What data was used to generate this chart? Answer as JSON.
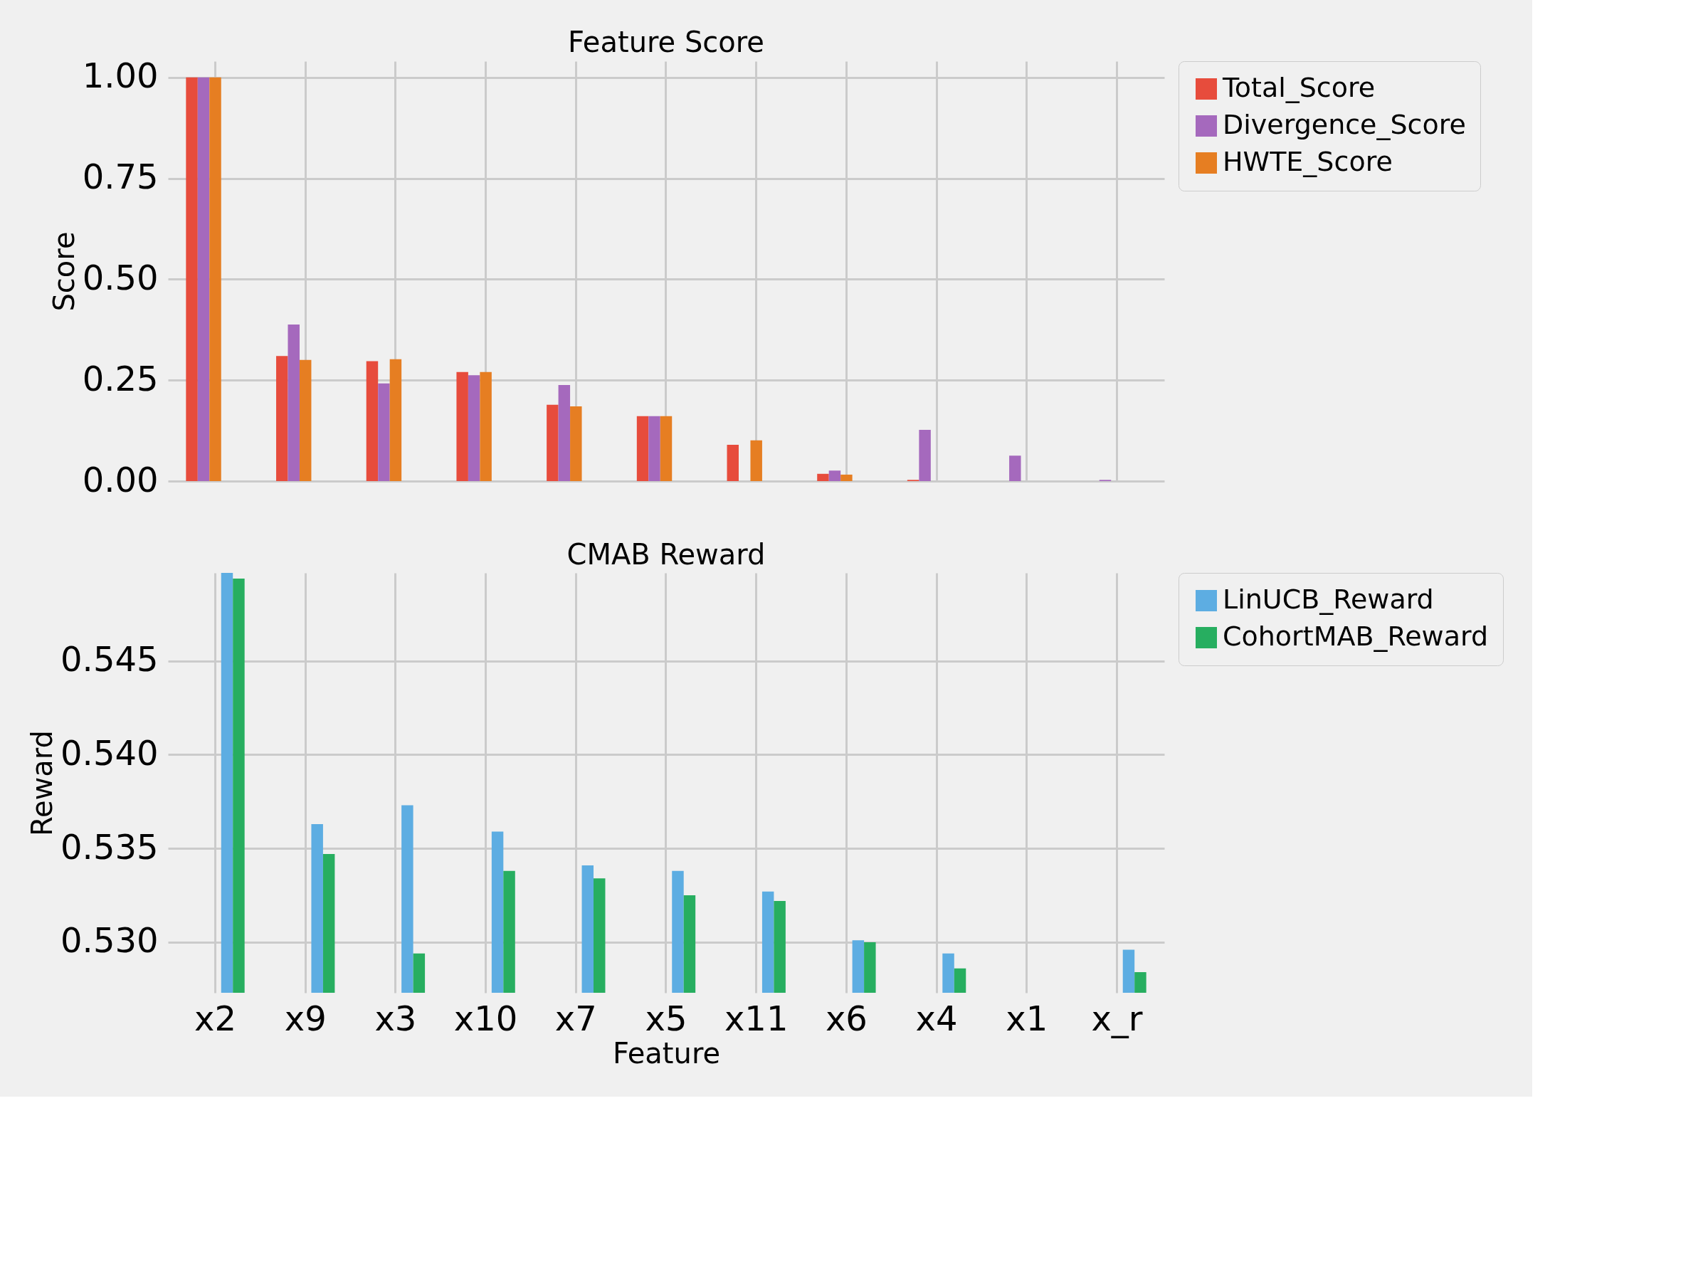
{
  "chart_data": [
    {
      "type": "bar",
      "title": "Feature Score",
      "ylabel": "Score",
      "categories": [
        null,
        null,
        null,
        null,
        null,
        null,
        null,
        null,
        null,
        null,
        null
      ],
      "series": [
        {
          "name": "Total_Score",
          "color": "#e74c3c",
          "values": [
            1.0,
            0.31,
            0.297,
            0.27,
            0.189,
            0.161,
            0.09,
            0.018,
            0.003,
            0,
            0
          ]
        },
        {
          "name": "Divergence_Score",
          "color": "#a569bd",
          "values": [
            1.0,
            0.388,
            0.242,
            0.262,
            0.238,
            0.161,
            0,
            0.026,
            0.127,
            0.063,
            0.003
          ]
        },
        {
          "name": "HWTE_Score",
          "color": "#e67e22",
          "values": [
            1.0,
            0.3,
            0.302,
            0.27,
            0.185,
            0.161,
            0.101,
            0.016,
            0,
            0,
            0
          ]
        }
      ],
      "ylim": [
        0,
        1.04
      ],
      "yticks": [
        {
          "value": 0,
          "label": "0.00"
        },
        {
          "value": 0.25,
          "label": "0.25"
        },
        {
          "value": 0.5,
          "label": "0.50"
        },
        {
          "value": 0.75,
          "label": "0.75"
        },
        {
          "value": 1.0,
          "label": "1.00"
        }
      ],
      "grid": true,
      "legend": "top right",
      "tick_labels": "y"
    },
    {
      "type": "bar",
      "title": "CMAB Reward",
      "xlabel": "Feature",
      "ylabel": "Reward",
      "categories": [
        "x2",
        "x9",
        "x3",
        "x10",
        "x7",
        "x5",
        "x11",
        "x6",
        "x4",
        "x1",
        "x_r"
      ],
      "series": [
        {
          "name": "LinUCB_Reward",
          "color": "#5dade2",
          "values": [
            0.5497,
            0.5363,
            0.5373,
            0.5359,
            0.5341,
            0.5338,
            0.5327,
            0.5301,
            0.5294,
            null,
            0.5296
          ]
        },
        {
          "name": "CohortMAB_Reward",
          "color": "#27ae60",
          "values": [
            0.5494,
            0.5347,
            0.5294,
            0.5338,
            0.5334,
            0.5325,
            0.5322,
            0.53,
            0.5286,
            null,
            0.5284
          ]
        }
      ],
      "ylim": [
        0.5273,
        0.5497
      ],
      "yticks": [
        {
          "value": 0.53,
          "label": "0.530"
        },
        {
          "value": 0.535,
          "label": "0.535"
        },
        {
          "value": 0.54,
          "label": "0.540"
        },
        {
          "value": 0.545,
          "label": "0.545"
        }
      ],
      "grid": true,
      "legend": "top right"
    }
  ]
}
